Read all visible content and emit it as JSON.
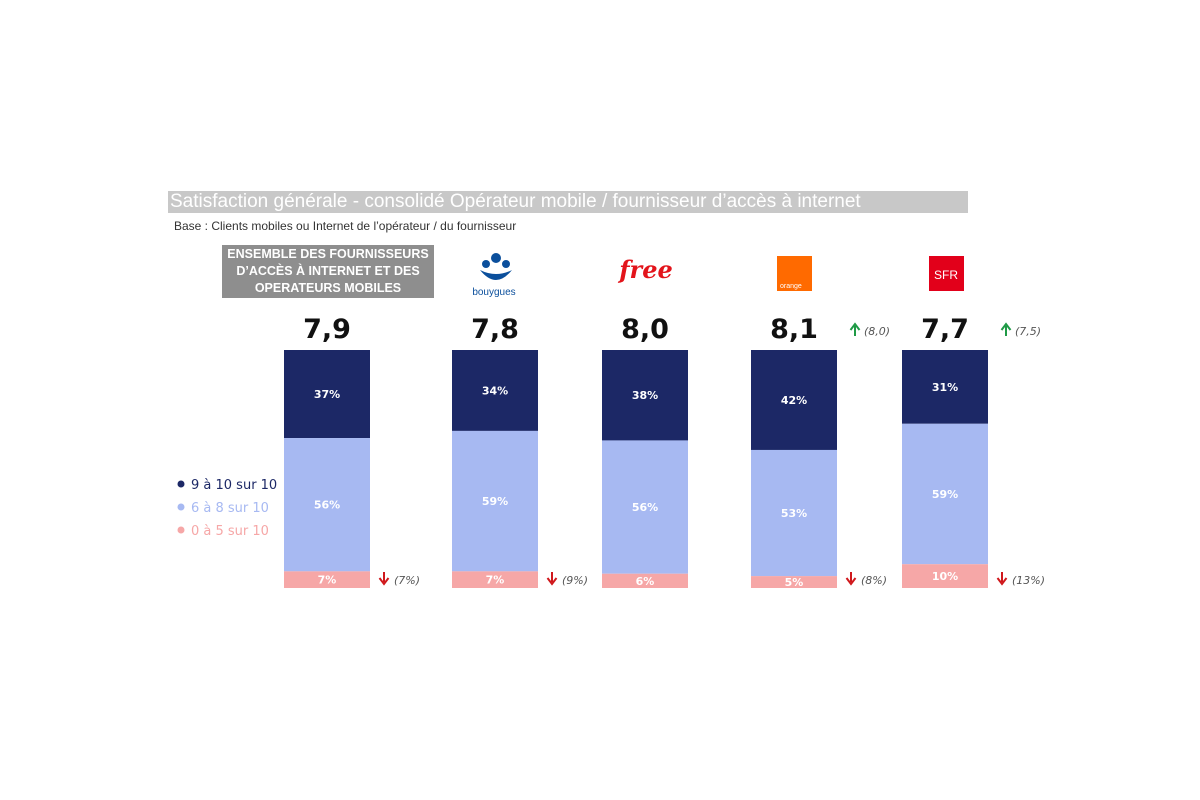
{
  "title": "Satisfaction générale - consolidé Opérateur mobile / fournisseur d’accès à internet",
  "base": "Base : Clients mobiles ou Internet de l’opérateur / du fournisseur",
  "group_label": [
    "ENSEMBLE DES FOURNISSEURS",
    "D’ACCÈS À INTERNET ET DES",
    "OPERATEURS MOBILES"
  ],
  "logos": {
    "bouygues": "bouygues",
    "free": "free",
    "orange": "orange",
    "sfr": "SFR"
  },
  "colors": {
    "top": "#1c2866",
    "mid": "#a7b9f2",
    "low": "#f6a7a7",
    "up_arrow": "#1f9a46",
    "down_arrow": "#d0181c",
    "orange_brand": "#ff6a00",
    "sfr_brand": "#e2001a",
    "free_brand": "#e3141b",
    "bouygues_brand": "#0b4f9c"
  },
  "chart_data": {
    "type": "bar",
    "stacked": true,
    "normalized": true,
    "categories": [
      "Ensemble",
      "Bouygues",
      "Free",
      "Orange",
      "SFR"
    ],
    "scores": [
      "7,9",
      "7,8",
      "8,0",
      "8,1",
      "7,7"
    ],
    "score_comparisons": [
      {
        "text": "",
        "direction": ""
      },
      {
        "text": "",
        "direction": ""
      },
      {
        "text": "",
        "direction": ""
      },
      {
        "text": "(8,0)",
        "direction": "up"
      },
      {
        "text": "(7,5)",
        "direction": "up"
      }
    ],
    "series": [
      {
        "name": "9 à 10 sur 10",
        "values": [
          37,
          34,
          38,
          42,
          31
        ],
        "labels": [
          "37%",
          "34%",
          "38%",
          "42%",
          "31%"
        ]
      },
      {
        "name": "6 à 8 sur 10",
        "values": [
          56,
          59,
          56,
          53,
          59
        ],
        "labels": [
          "56%",
          "59%",
          "56%",
          "53%",
          "59%"
        ]
      },
      {
        "name": "0 à 5 sur 10",
        "values": [
          7,
          7,
          6,
          5,
          10
        ],
        "labels": [
          "7%",
          "7%",
          "6%",
          "5%",
          "10%"
        ]
      }
    ],
    "low_comparisons": [
      {
        "text": "(7%)",
        "direction": "down"
      },
      {
        "text": "(9%)",
        "direction": "down"
      },
      {
        "text": "",
        "direction": ""
      },
      {
        "text": "(8%)",
        "direction": "down"
      },
      {
        "text": "(13%)",
        "direction": "down"
      }
    ],
    "legend": "left-middle"
  }
}
